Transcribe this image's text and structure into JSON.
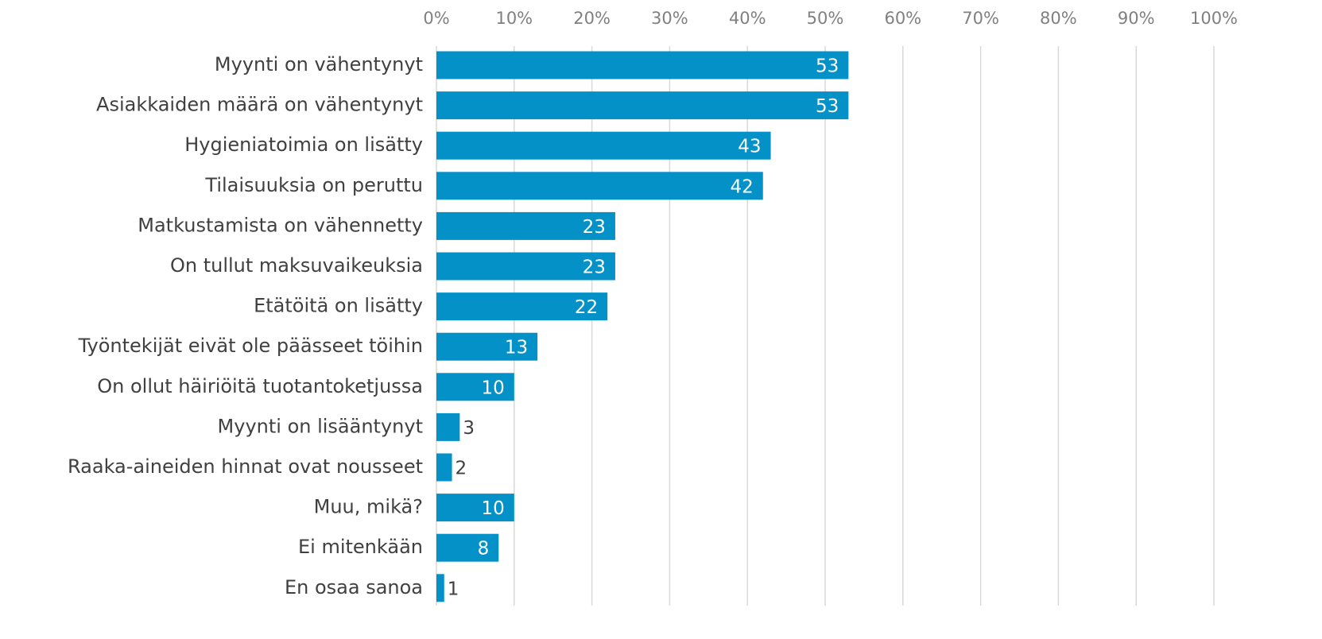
{
  "chart_data": {
    "type": "bar",
    "orientation": "horizontal",
    "categories": [
      "Myynti on vähentynyt",
      "Asiakkaiden määrä on vähentynyt",
      "Hygieniatoimia on lisätty",
      "Tilaisuuksia on peruttu",
      "Matkustamista on vähennetty",
      "On tullut maksuvaikeuksia",
      "Etätöitä on lisätty",
      "Työntekijät eivät ole päässeet töihin",
      "On ollut häiriöitä tuotantoketjussa",
      "Myynti on lisääntynyt",
      "Raaka-aineiden hinnat ovat nousseet",
      "Muu, mikä?",
      "Ei mitenkään",
      "En osaa sanoa"
    ],
    "values": [
      53,
      53,
      43,
      42,
      23,
      23,
      22,
      13,
      10,
      3,
      2,
      10,
      8,
      1
    ],
    "color": "#0391c8",
    "xlim": [
      0,
      100
    ],
    "xticks": [
      {
        "value": 0,
        "label": "0%"
      },
      {
        "value": 10,
        "label": "10%"
      },
      {
        "value": 20,
        "label": "20%"
      },
      {
        "value": 30,
        "label": "30%"
      },
      {
        "value": 40,
        "label": "40%"
      },
      {
        "value": 50,
        "label": "50%"
      },
      {
        "value": 60,
        "label": "60%"
      },
      {
        "value": 70,
        "label": "70%"
      },
      {
        "value": 80,
        "label": "80%"
      },
      {
        "value": 90,
        "label": "90%"
      },
      {
        "value": 100,
        "label": "100%"
      }
    ],
    "grid": true
  }
}
